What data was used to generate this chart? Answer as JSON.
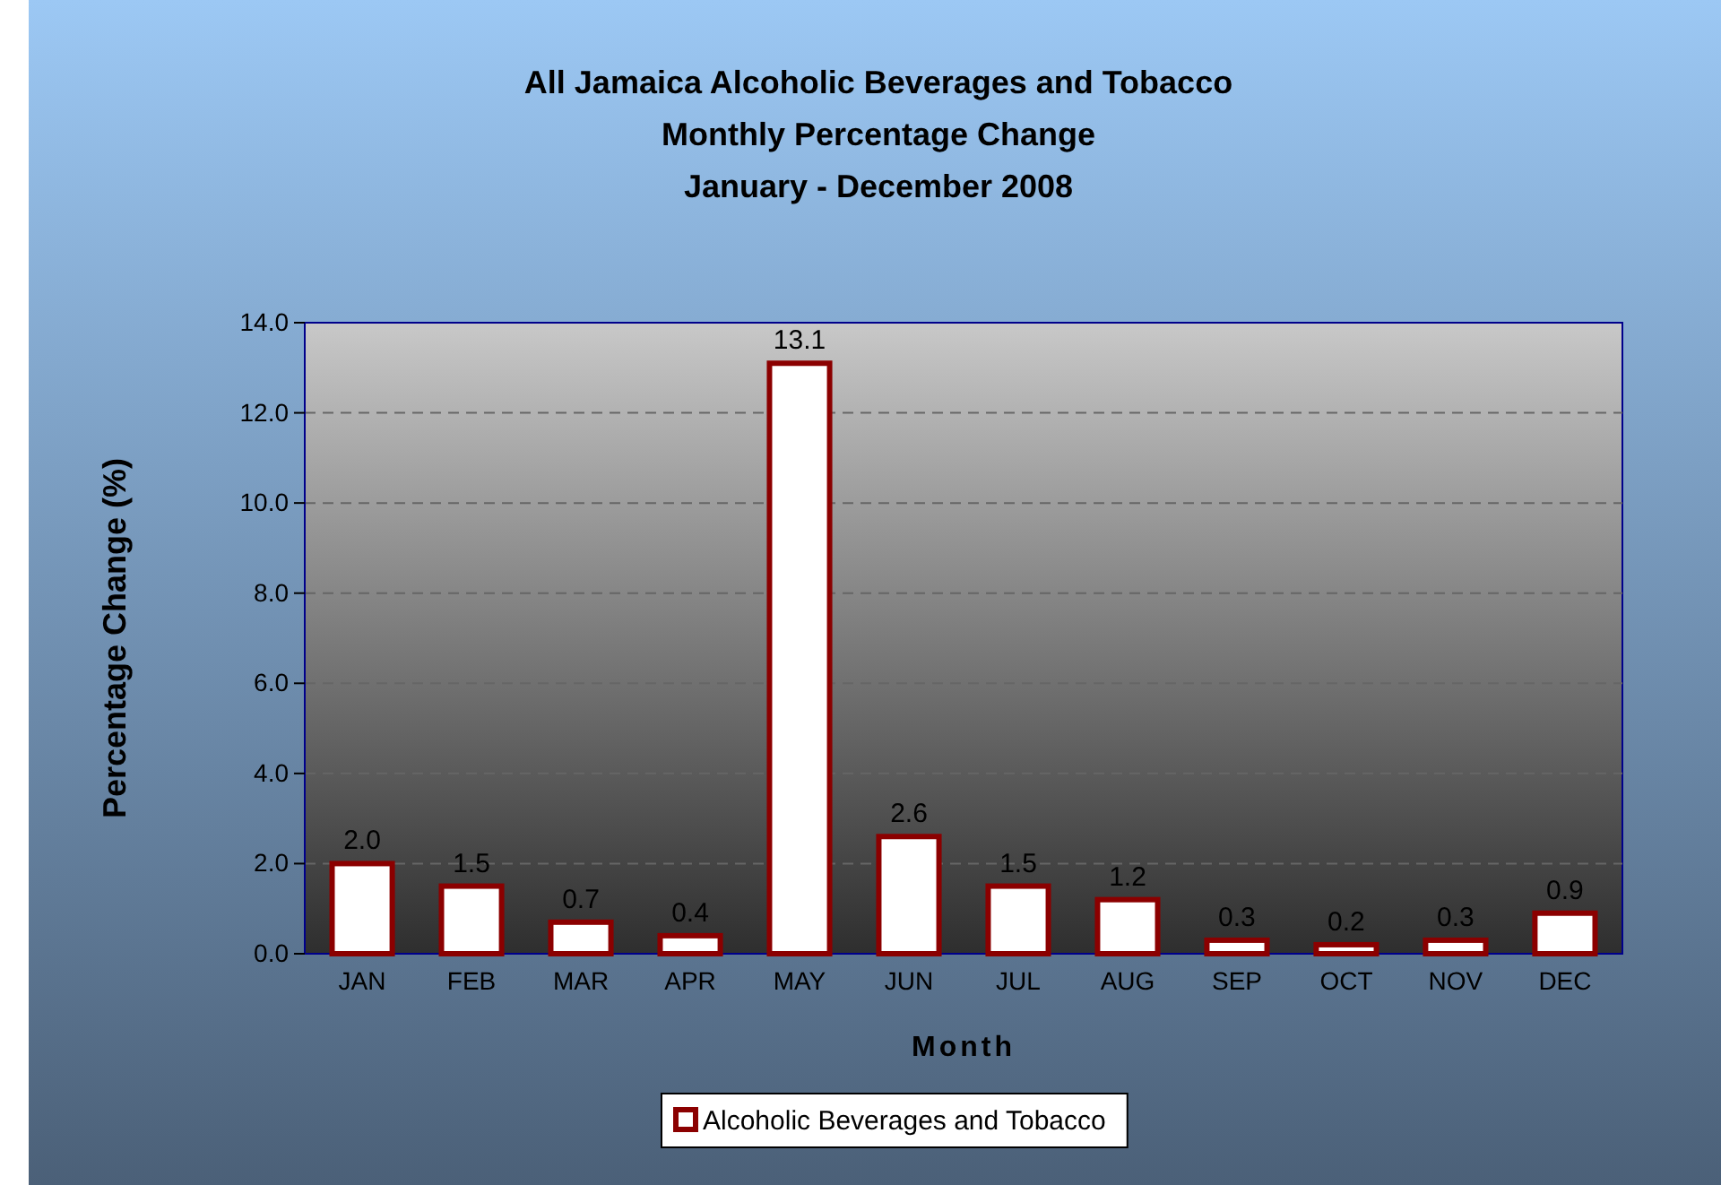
{
  "chart_data": {
    "type": "bar",
    "title": "All Jamaica Alcoholic Beverages and Tobacco\nMonthly Percentage Change\nJanuary - December 2008",
    "xlabel": "Month",
    "ylabel": "Percentage Change (%)",
    "categories": [
      "JAN",
      "FEB",
      "MAR",
      "APR",
      "MAY",
      "JUN",
      "JUL",
      "AUG",
      "SEP",
      "OCT",
      "NOV",
      "DEC"
    ],
    "series": [
      {
        "name": "Alcoholic Beverages and Tobacco",
        "color": "#8b0000",
        "values": [
          2.0,
          1.5,
          0.7,
          0.4,
          13.1,
          2.6,
          1.5,
          1.2,
          0.3,
          0.2,
          0.3,
          0.9
        ],
        "value_labels": [
          "2.0",
          "1.5",
          "0.7",
          "0.4",
          "13.1",
          "2.6",
          "1.5",
          "1.2",
          "0.3",
          "0.2",
          "0.3",
          "0.9"
        ]
      }
    ],
    "ylim": [
      0,
      14
    ],
    "yticks": [
      {
        "value": 0,
        "label": "0.0"
      },
      {
        "value": 2,
        "label": "2.0"
      },
      {
        "value": 4,
        "label": "4.0"
      },
      {
        "value": 6,
        "label": "6.0"
      },
      {
        "value": 8,
        "label": "8.0"
      },
      {
        "value": 10,
        "label": "10.0"
      },
      {
        "value": 12,
        "label": "12.0"
      },
      {
        "value": 14,
        "label": "14.0"
      }
    ],
    "grid": "y",
    "legend": "bottom"
  }
}
